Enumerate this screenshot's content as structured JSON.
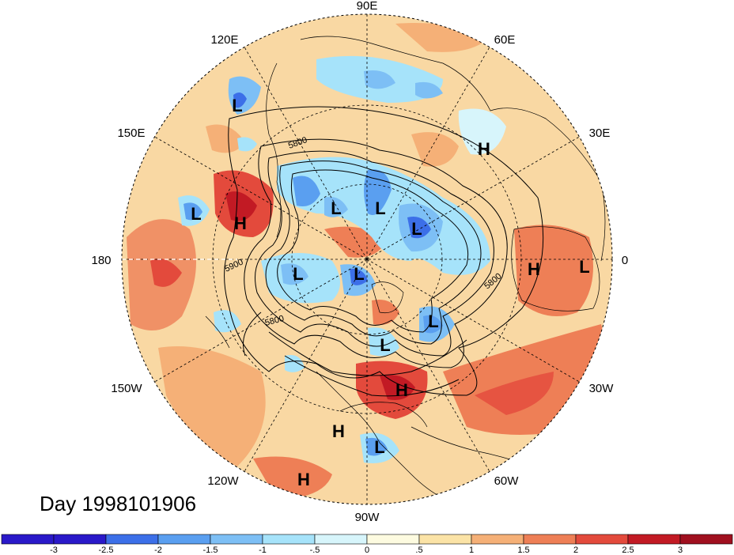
{
  "title": "Day 1998101906",
  "map": {
    "projection": "polar stereographic (north)",
    "center_lon_top": "90E",
    "longitude_labels": [
      {
        "text": "90E",
        "lon": 90
      },
      {
        "text": "60E",
        "lon": 60
      },
      {
        "text": "30E",
        "lon": 30
      },
      {
        "text": "0",
        "lon": 0
      },
      {
        "text": "30W",
        "lon": -30
      },
      {
        "text": "60W",
        "lon": -60
      },
      {
        "text": "90W",
        "lon": -90
      },
      {
        "text": "120W",
        "lon": -120
      },
      {
        "text": "150W",
        "lon": -150
      },
      {
        "text": "180",
        "lon": 180
      },
      {
        "text": "150E",
        "lon": 150
      },
      {
        "text": "120E",
        "lon": 120
      }
    ],
    "contour_labels": [
      "5800",
      "5900",
      "5800",
      "5800"
    ],
    "centers": [
      {
        "type": "L",
        "name": "low-siberia-east"
      },
      {
        "type": "H",
        "name": "high-bering"
      },
      {
        "type": "L",
        "name": "low-west-pacific"
      },
      {
        "type": "L",
        "name": "low-east-siberia-1"
      },
      {
        "type": "L",
        "name": "low-east-siberia-2"
      },
      {
        "type": "L",
        "name": "low-central-siberia"
      },
      {
        "type": "H",
        "name": "high-west-asia"
      },
      {
        "type": "L",
        "name": "low-alaska"
      },
      {
        "type": "L",
        "name": "low-arctic"
      },
      {
        "type": "H",
        "name": "high-north-africa"
      },
      {
        "type": "L",
        "name": "low-west-africa"
      },
      {
        "type": "L",
        "name": "low-north-atlantic"
      },
      {
        "type": "L",
        "name": "low-greenland"
      },
      {
        "type": "H",
        "name": "high-southeast-us"
      },
      {
        "type": "H",
        "name": "high-mexico"
      },
      {
        "type": "L",
        "name": "low-central-america"
      },
      {
        "type": "H",
        "name": "high-east-pacific"
      }
    ]
  },
  "colorbar": {
    "ticks": [
      "-3",
      "-2.5",
      "-2",
      "-1.5",
      "-1",
      "-.5",
      "0",
      ".5",
      "1",
      "1.5",
      "2",
      "2.5",
      "3"
    ],
    "colors": [
      "#2a19c9",
      "#3c6fe8",
      "#5a9ff0",
      "#7dbff5",
      "#a6e3fa",
      "#d7f5fb",
      "#fdfbe0",
      "#fbe3a6",
      "#f5b077",
      "#ee7f56",
      "#e34a3c",
      "#c21a24",
      "#a0101f"
    ]
  }
}
